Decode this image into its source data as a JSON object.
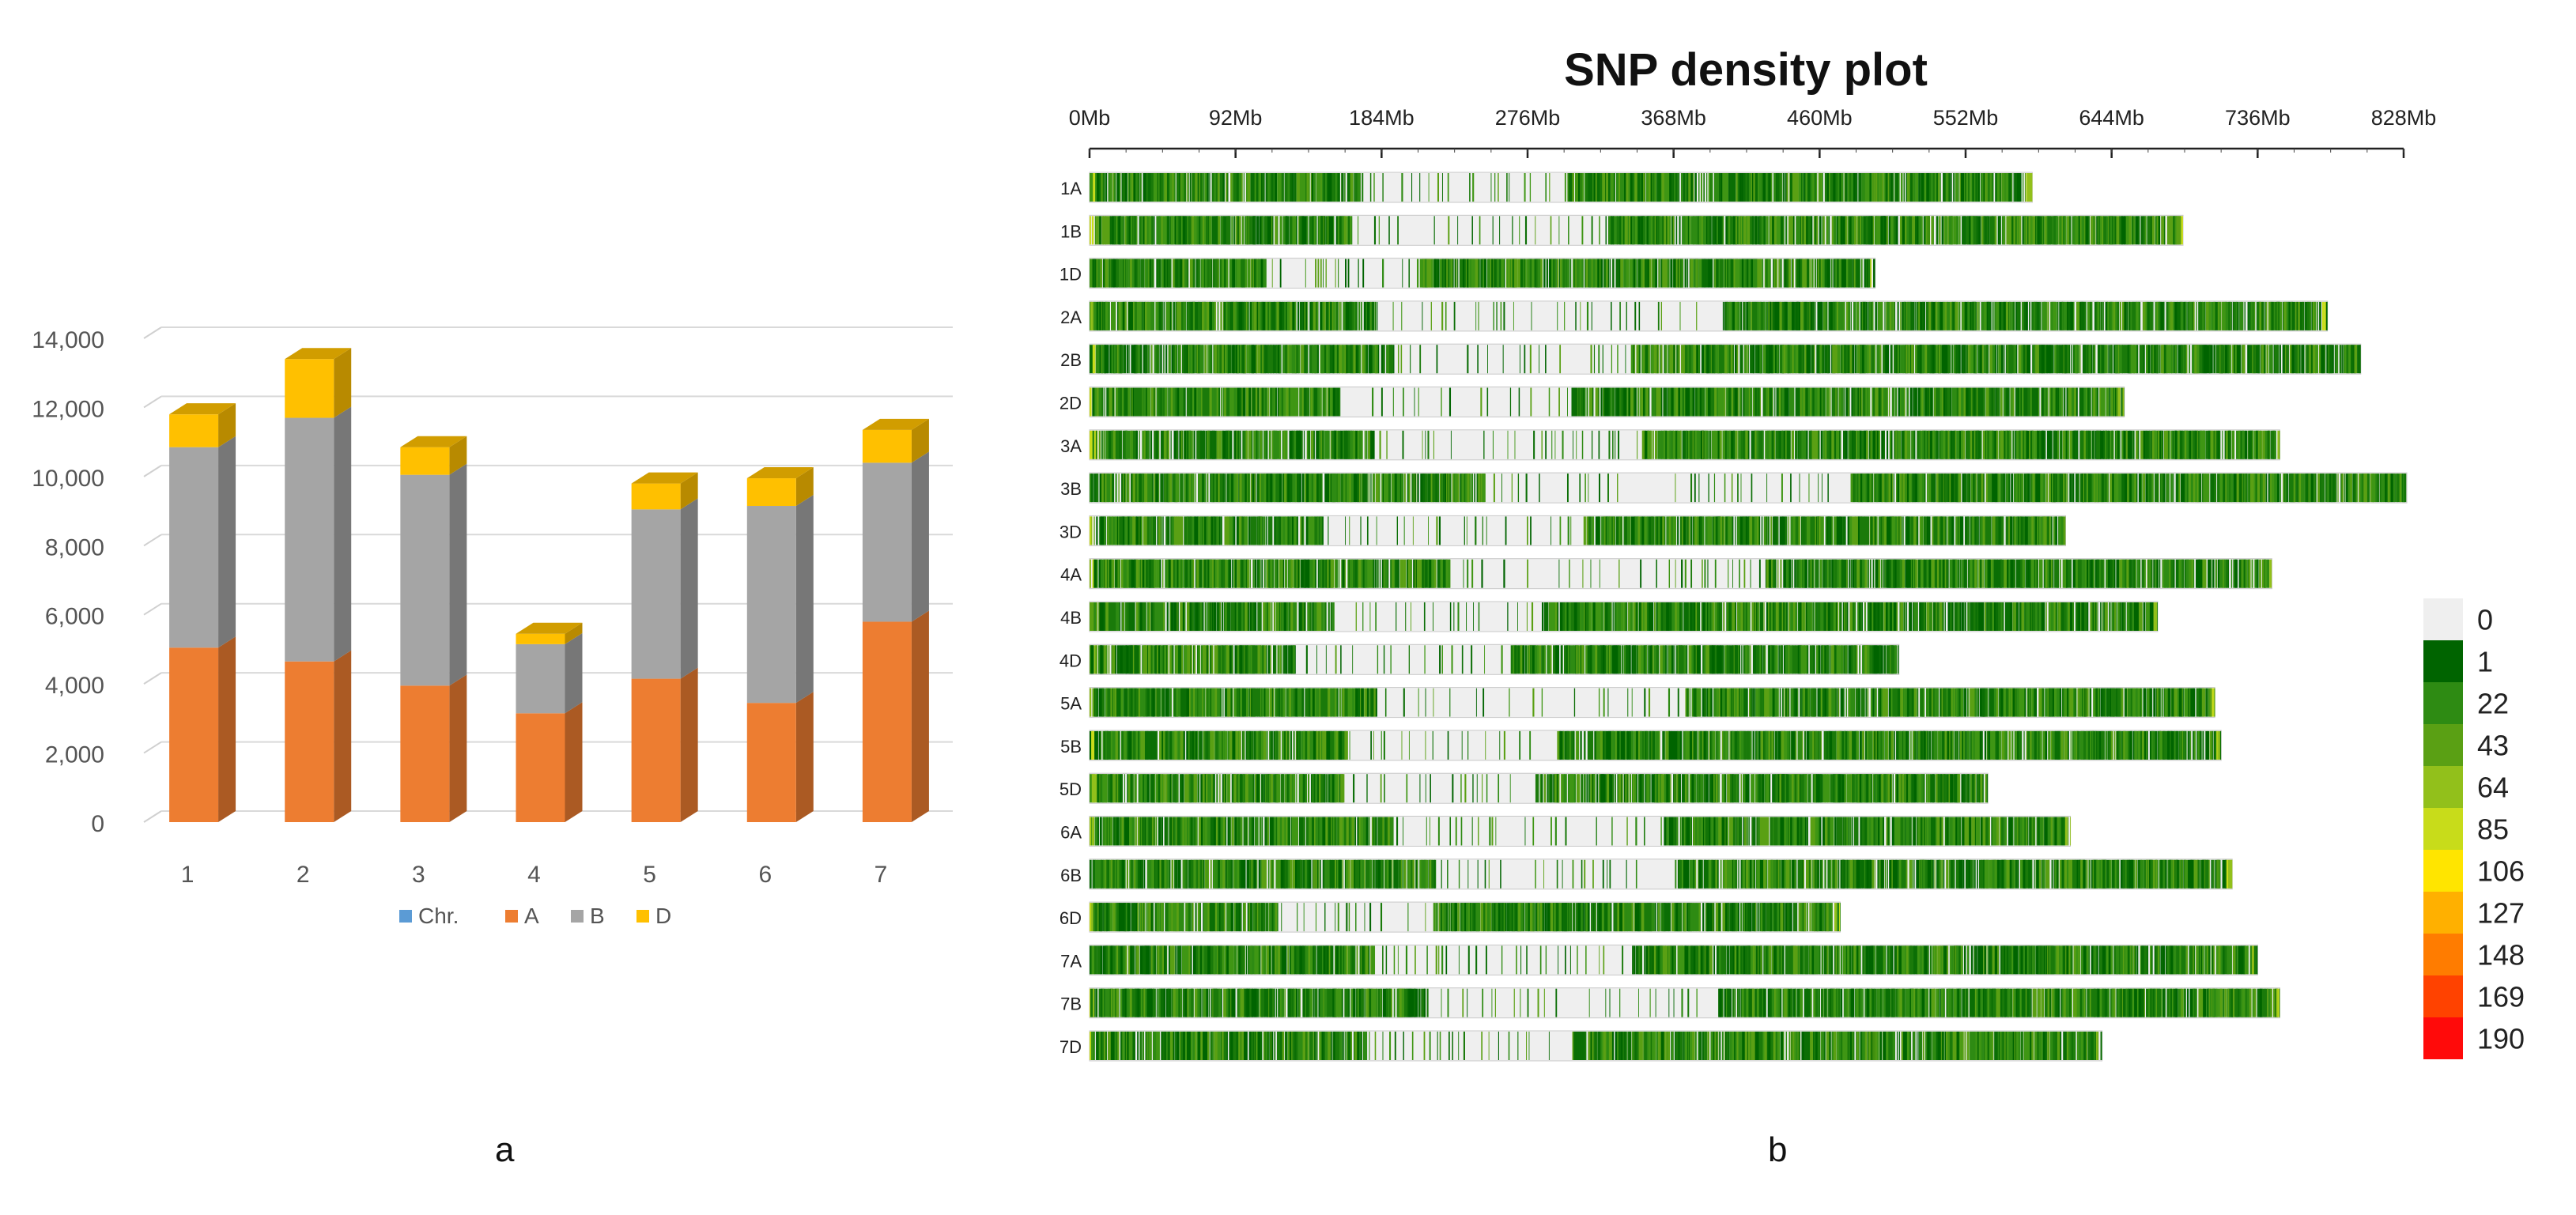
{
  "panel_labels": {
    "a": "a",
    "b": "b"
  },
  "chart_data": [
    {
      "type": "bar",
      "subtype": "stacked-3d",
      "title": "",
      "xlabel": "",
      "ylabel": "",
      "categories": [
        "1",
        "2",
        "3",
        "4",
        "5",
        "6",
        "7"
      ],
      "ylim": [
        0,
        14000
      ],
      "yticks": [
        0,
        2000,
        4000,
        6000,
        8000,
        10000,
        12000,
        14000
      ],
      "ytick_labels": [
        "0",
        "2,000",
        "4,000",
        "6,000",
        "8,000",
        "10,000",
        "12,000",
        "14,000"
      ],
      "grid": true,
      "legend_position": "bottom",
      "legend": [
        "Chr.",
        "A",
        "B",
        "D"
      ],
      "legend_colors": [
        "#5b9bd5",
        "#ed7d31",
        "#a5a5a5",
        "#ffc000"
      ],
      "series": [
        {
          "name": "A",
          "color": "#ed7d31",
          "values": [
            5050,
            4650,
            3950,
            3150,
            4150,
            3450,
            5800
          ]
        },
        {
          "name": "B",
          "color": "#a5a5a5",
          "values": [
            5800,
            7050,
            6100,
            2000,
            4900,
            5700,
            4600
          ]
        },
        {
          "name": "D",
          "color": "#ffc000",
          "values": [
            950,
            1700,
            800,
            300,
            750,
            800,
            950
          ]
        }
      ]
    },
    {
      "type": "heatmap",
      "title": "SNP density plot",
      "xticks": [
        "0Mb",
        "92Mb",
        "184Mb",
        "276Mb",
        "368Mb",
        "460Mb",
        "552Mb",
        "644Mb",
        "736Mb",
        "828Mb"
      ],
      "xtick_values": [
        0,
        92,
        184,
        276,
        368,
        460,
        552,
        644,
        736,
        828
      ],
      "xlim": [
        0,
        828
      ],
      "unit": "Mb",
      "chromosomes": [
        {
          "name": "1A",
          "length": 594
        },
        {
          "name": "1B",
          "length": 689
        },
        {
          "name": "1D",
          "length": 495
        },
        {
          "name": "2A",
          "length": 780
        },
        {
          "name": "2B",
          "length": 801
        },
        {
          "name": "2D",
          "length": 652
        },
        {
          "name": "3A",
          "length": 750
        },
        {
          "name": "3B",
          "length": 830
        },
        {
          "name": "3D",
          "length": 615
        },
        {
          "name": "4A",
          "length": 745
        },
        {
          "name": "4B",
          "length": 673
        },
        {
          "name": "4D",
          "length": 510
        },
        {
          "name": "5A",
          "length": 709
        },
        {
          "name": "5B",
          "length": 713
        },
        {
          "name": "5D",
          "length": 566
        },
        {
          "name": "6A",
          "length": 618
        },
        {
          "name": "6B",
          "length": 720
        },
        {
          "name": "6D",
          "length": 473
        },
        {
          "name": "7A",
          "length": 736
        },
        {
          "name": "7B",
          "length": 750
        },
        {
          "name": "7D",
          "length": 638
        }
      ],
      "colorbar": {
        "labels": [
          "0",
          "1",
          "22",
          "43",
          "64",
          "85",
          "106",
          "127",
          "148",
          "169",
          "190"
        ],
        "colors": [
          "#efefef",
          "#006400",
          "#2e8b13",
          "#5aa014",
          "#92c01b",
          "#c8dc1a",
          "#ffe500",
          "#ffb000",
          "#ff7c00",
          "#ff4200",
          "#ff0a0a"
        ]
      }
    }
  ]
}
